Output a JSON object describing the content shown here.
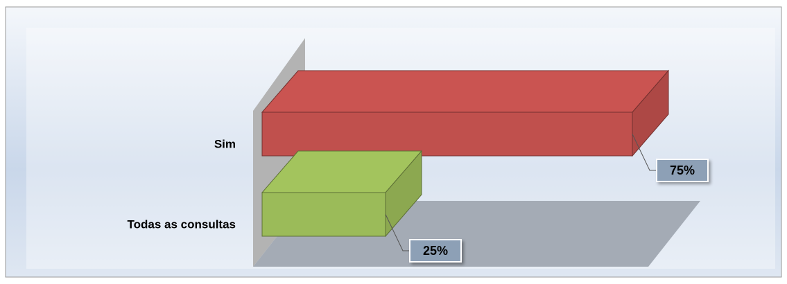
{
  "chart_data": {
    "type": "bar3d-horizontal",
    "categories": [
      "Sim",
      "Todas as consultas"
    ],
    "values": [
      75,
      25
    ],
    "value_labels": [
      "75%",
      "25%"
    ],
    "colors": [
      "#c0504d",
      "#9bbb59"
    ]
  }
}
